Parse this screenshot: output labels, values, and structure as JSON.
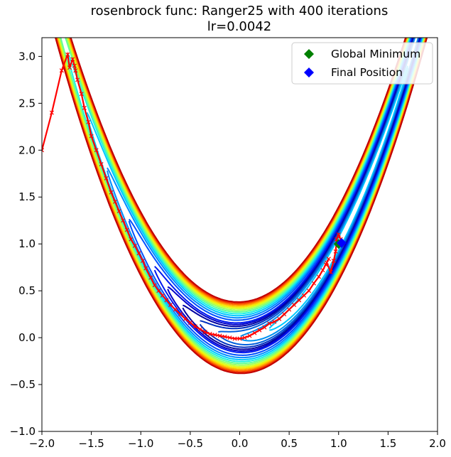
{
  "chart_data": {
    "type": "line",
    "title": "rosenbrock func: Ranger25 with 400 iterations",
    "subtitle": "lr=0.0042",
    "xlabel": "",
    "ylabel": "",
    "xlim": [
      -2.0,
      2.0
    ],
    "ylim": [
      -1.0,
      3.2
    ],
    "xticks": [
      "−2.0",
      "−1.5",
      "−1.0",
      "−0.5",
      "0.0",
      "0.5",
      "1.0",
      "1.5",
      "2.0"
    ],
    "xtick_values": [
      -2.0,
      -1.5,
      -1.0,
      -0.5,
      0.0,
      0.5,
      1.0,
      1.5,
      2.0
    ],
    "yticks": [
      "−1.0",
      "−0.5",
      "0.0",
      "0.5",
      "1.0",
      "1.5",
      "2.0",
      "2.5",
      "3.0"
    ],
    "ytick_values": [
      -1.0,
      -0.5,
      0.0,
      0.5,
      1.0,
      1.5,
      2.0,
      2.5,
      3.0
    ],
    "grid": false,
    "legend_position": "top-right",
    "legend": [
      {
        "name": "Global Minimum",
        "color": "#008000",
        "marker": "diamond"
      },
      {
        "name": "Final Position",
        "color": "#0000ff",
        "marker": "diamond"
      }
    ],
    "global_minimum": {
      "x": 1.0,
      "y": 1.0
    },
    "final_position": {
      "x": 1.03,
      "y": 1.01
    },
    "contour": {
      "function": "rosenbrock",
      "levels": [
        0.5,
        1,
        1.5,
        2,
        2.5,
        3,
        3.5,
        4.5,
        5.5,
        6.5,
        7.5,
        8.5,
        9.5,
        10.5,
        11.5,
        12.5,
        13.5,
        14.5,
        15.5
      ],
      "colors": [
        "#00c8ff",
        "#0090f0",
        "#0060dd",
        "#0030c0",
        "#0000a0",
        "#0000c8",
        "#0018f0",
        "#0050ff",
        "#008cff",
        "#00c8ff",
        "#20f0e0",
        "#60ff98",
        "#98ff60",
        "#d0ff28",
        "#f8e800",
        "#ffb000",
        "#ff7000",
        "#f03000",
        "#c00000"
      ]
    },
    "path_series": {
      "name": "Ranger25 path",
      "color": "#ff0000",
      "x": [
        -2.0,
        -1.9,
        -1.8,
        -1.74,
        -1.72,
        -1.69,
        -1.67,
        -1.66,
        -1.64,
        -1.6,
        -1.57,
        -1.53,
        -1.5,
        -1.45,
        -1.4,
        -1.35,
        -1.3,
        -1.26,
        -1.22,
        -1.18,
        -1.14,
        -1.1,
        -1.06,
        -1.02,
        -0.98,
        -0.95,
        -0.9,
        -0.86,
        -0.82,
        -0.78,
        -0.74,
        -0.7,
        -0.65,
        -0.6,
        -0.55,
        -0.5,
        -0.45,
        -0.4,
        -0.35,
        -0.3,
        -0.25,
        -0.2,
        -0.15,
        -0.1,
        -0.05,
        0.0,
        0.05,
        0.1,
        0.15,
        0.2,
        0.25,
        0.3,
        0.35,
        0.4,
        0.45,
        0.5,
        0.55,
        0.6,
        0.65,
        0.7,
        0.75,
        0.8,
        0.84,
        0.87,
        0.9,
        0.88,
        0.92,
        0.95,
        0.97,
        0.98,
        1.0,
        1.02,
        1.03
      ],
      "y": [
        2.0,
        2.4,
        2.85,
        3.02,
        2.88,
        2.97,
        2.9,
        2.85,
        2.75,
        2.6,
        2.45,
        2.3,
        2.15,
        2.0,
        1.85,
        1.7,
        1.55,
        1.45,
        1.35,
        1.25,
        1.15,
        1.05,
        0.98,
        0.9,
        0.82,
        0.74,
        0.64,
        0.56,
        0.5,
        0.45,
        0.4,
        0.35,
        0.3,
        0.25,
        0.2,
        0.16,
        0.12,
        0.09,
        0.06,
        0.04,
        0.03,
        0.02,
        0.01,
        0.0,
        -0.01,
        -0.01,
        0.0,
        0.02,
        0.05,
        0.08,
        0.11,
        0.15,
        0.17,
        0.2,
        0.25,
        0.3,
        0.35,
        0.4,
        0.45,
        0.5,
        0.58,
        0.65,
        0.72,
        0.78,
        0.84,
        0.8,
        0.7,
        0.82,
        0.92,
        1.05,
        1.1,
        1.05,
        1.01
      ]
    }
  }
}
